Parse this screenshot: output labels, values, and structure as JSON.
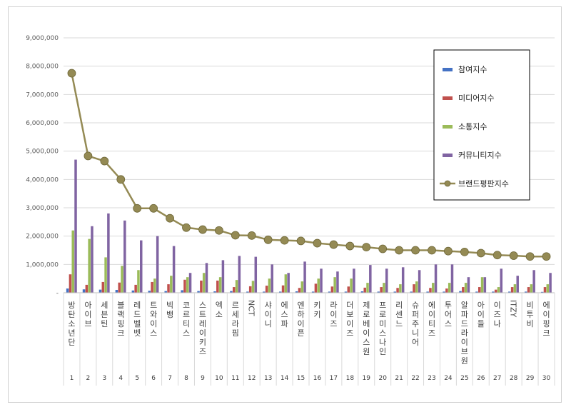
{
  "chart_data": {
    "type": "bar",
    "title": "",
    "xlabel": "",
    "ylabel": "",
    "ylim": [
      0,
      9000000
    ],
    "yticks": [
      "-",
      "1,000,000",
      "2,000,000",
      "3,000,000",
      "4,000,000",
      "5,000,000",
      "6,000,000",
      "7,000,000",
      "8,000,000",
      "9,000,000"
    ],
    "grid": true,
    "legend_position": "top-right",
    "categories": [
      "방탄소년단",
      "아이브",
      "세븐틴",
      "블랙핑크",
      "레드벨벳",
      "트와이스",
      "빅뱅",
      "코르티스",
      "스트레이키즈",
      "엑소",
      "르세라핌",
      "NCT",
      "샤이니",
      "에스파",
      "엔하이픈",
      "키키",
      "라이즈",
      "더보이즈",
      "제로베이스원",
      "프로미스나인",
      "리센느",
      "슈퍼주니어",
      "에이티즈",
      "투어스",
      "알파드라이브원",
      "아이들",
      "이즈나",
      "ITZY",
      "비투비",
      "에이핑크"
    ],
    "ranks": [
      "1",
      "2",
      "3",
      "4",
      "5",
      "6",
      "7",
      "8",
      "9",
      "10",
      "11",
      "12",
      "13",
      "14",
      "15",
      "16",
      "17",
      "18",
      "19",
      "20",
      "21",
      "22",
      "23",
      "24",
      "25",
      "26",
      "27",
      "28",
      "29",
      "30"
    ],
    "series": [
      {
        "name": "참여지수",
        "type": "bar",
        "color": "#4472c4",
        "values": [
          150000,
          120000,
          110000,
          100000,
          80000,
          70000,
          60000,
          90000,
          60000,
          50000,
          60000,
          40000,
          40000,
          40000,
          50000,
          40000,
          40000,
          40000,
          50000,
          40000,
          40000,
          40000,
          40000,
          40000,
          60000,
          40000,
          40000,
          40000,
          40000,
          30000
        ]
      },
      {
        "name": "미디어지수",
        "type": "bar",
        "color": "#c0504d",
        "values": [
          650000,
          280000,
          380000,
          360000,
          280000,
          380000,
          300000,
          460000,
          430000,
          430000,
          200000,
          230000,
          250000,
          260000,
          170000,
          320000,
          220000,
          220000,
          180000,
          200000,
          170000,
          300000,
          170000,
          150000,
          200000,
          200000,
          110000,
          200000,
          200000,
          200000
        ]
      },
      {
        "name": "소통지수",
        "type": "bar",
        "color": "#9bbb59",
        "values": [
          2200000,
          1900000,
          1250000,
          950000,
          800000,
          500000,
          600000,
          550000,
          700000,
          550000,
          450000,
          420000,
          500000,
          650000,
          400000,
          500000,
          550000,
          500000,
          350000,
          350000,
          300000,
          400000,
          350000,
          350000,
          350000,
          550000,
          200000,
          300000,
          300000,
          300000
        ]
      },
      {
        "name": "커뮤니티지수",
        "type": "bar",
        "color": "#8064a2",
        "values": [
          4700000,
          2350000,
          2800000,
          2550000,
          1850000,
          2000000,
          1650000,
          700000,
          1050000,
          1150000,
          1300000,
          1270000,
          1000000,
          700000,
          1100000,
          850000,
          750000,
          850000,
          980000,
          850000,
          900000,
          800000,
          1000000,
          1000000,
          550000,
          550000,
          850000,
          600000,
          800000,
          700000
        ]
      },
      {
        "name": "브랜드평판지수",
        "type": "line",
        "color": "#948a54",
        "values": [
          7750000,
          4830000,
          4650000,
          4000000,
          2980000,
          2980000,
          2630000,
          2300000,
          2230000,
          2200000,
          2030000,
          2020000,
          1870000,
          1850000,
          1830000,
          1750000,
          1700000,
          1650000,
          1610000,
          1550000,
          1500000,
          1500000,
          1500000,
          1470000,
          1440000,
          1400000,
          1330000,
          1310000,
          1280000,
          1280000
        ]
      }
    ]
  }
}
